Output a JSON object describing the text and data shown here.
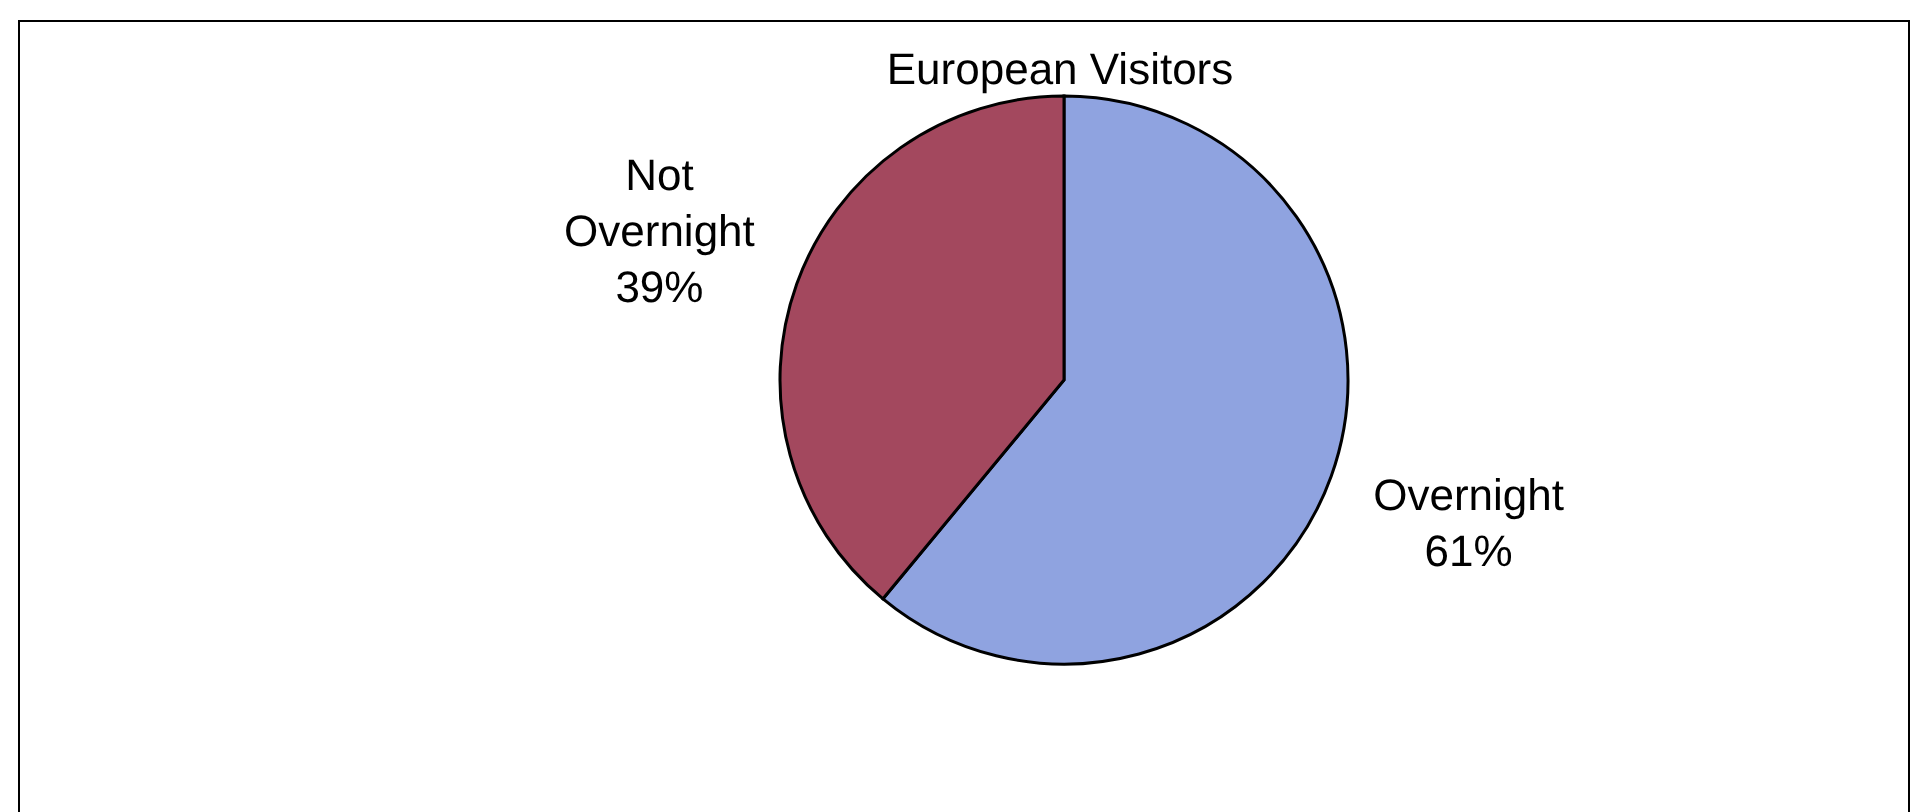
{
  "chart_data": {
    "type": "pie",
    "title": "European Visitors",
    "categories": [
      "Overnight",
      "Not Overnight"
    ],
    "values": [
      61,
      39
    ],
    "value_labels": [
      "61%",
      "39%"
    ],
    "colors": [
      "#8fa3e0",
      "#a3485e"
    ]
  }
}
